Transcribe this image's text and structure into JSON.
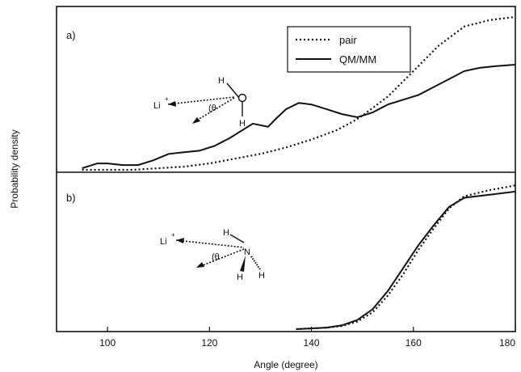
{
  "chart_data": [
    {
      "type": "line",
      "panel_label": "a)",
      "xlabel": "Angle (degree)",
      "ylabel": "Probability density",
      "xlim": [
        90,
        180
      ],
      "xticks": [
        100,
        120,
        140,
        160,
        180
      ],
      "legend": {
        "placement": "top-right",
        "entries": [
          "pair",
          "QM/MM"
        ]
      },
      "molecule_labels": {
        "ion": "Li",
        "ion_charge": "+",
        "angle": "(θ",
        "atoms": [
          "H",
          "O",
          "H"
        ]
      },
      "series": [
        {
          "name": "pair",
          "style": "dotted",
          "x": [
            95,
            105,
            110,
            115,
            120,
            125,
            130,
            135,
            140,
            145,
            148,
            150,
            155,
            160,
            165,
            170,
            175,
            180
          ],
          "y": [
            0,
            0,
            0.01,
            0.02,
            0.04,
            0.07,
            0.1,
            0.14,
            0.19,
            0.25,
            0.3,
            0.34,
            0.46,
            0.62,
            0.78,
            0.9,
            0.94,
            0.96
          ]
        },
        {
          "name": "QM/MM",
          "style": "solid",
          "x": [
            95,
            98,
            100,
            103,
            106,
            109,
            112,
            115,
            118,
            121,
            124,
            127,
            128.5,
            130,
            131.5,
            133,
            135,
            137.5,
            140,
            143,
            146,
            149,
            152,
            155,
            158,
            161,
            164,
            167,
            170,
            173,
            176,
            180
          ],
          "y": [
            0.01,
            0.04,
            0.04,
            0.03,
            0.03,
            0.06,
            0.1,
            0.11,
            0.12,
            0.15,
            0.2,
            0.26,
            0.29,
            0.28,
            0.27,
            0.32,
            0.38,
            0.42,
            0.41,
            0.38,
            0.35,
            0.33,
            0.36,
            0.41,
            0.44,
            0.47,
            0.52,
            0.57,
            0.62,
            0.64,
            0.65,
            0.66
          ]
        }
      ]
    },
    {
      "type": "line",
      "panel_label": "b)",
      "xlabel": "Angle (degree)",
      "ylabel": "Probability density",
      "xlim": [
        90,
        180
      ],
      "xticks": [
        100,
        120,
        140,
        160,
        180
      ],
      "molecule_labels": {
        "ion": "Li",
        "ion_charge": "+",
        "angle": "(θ",
        "atoms": [
          "H",
          "N",
          "H",
          "H"
        ]
      },
      "series": [
        {
          "name": "pair",
          "style": "dotted",
          "x": [
            137,
            140,
            143,
            146,
            149,
            152,
            155,
            158,
            161,
            164,
            167,
            170,
            175,
            180
          ],
          "y": [
            0,
            0.005,
            0.01,
            0.02,
            0.05,
            0.11,
            0.22,
            0.36,
            0.52,
            0.66,
            0.79,
            0.87,
            0.91,
            0.94
          ]
        },
        {
          "name": "QM/MM",
          "style": "solid",
          "x": [
            137,
            140,
            143,
            146,
            149,
            152,
            155,
            158,
            161,
            164,
            167,
            170,
            175,
            180
          ],
          "y": [
            0,
            0.005,
            0.01,
            0.025,
            0.06,
            0.13,
            0.25,
            0.4,
            0.55,
            0.68,
            0.8,
            0.86,
            0.88,
            0.9
          ]
        }
      ]
    }
  ]
}
